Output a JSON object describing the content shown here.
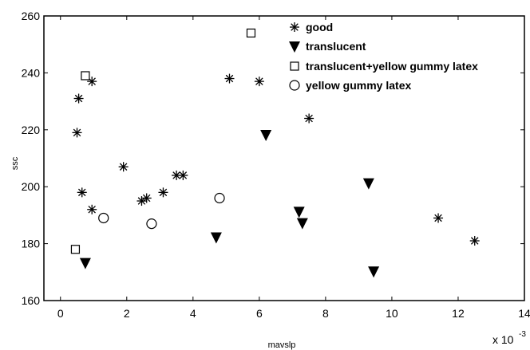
{
  "chart_data": {
    "type": "scatter",
    "title": "",
    "xlabel": "mavslp",
    "ylabel": "ssc",
    "x_multiplier": {
      "base": "x 10",
      "exponent": "-3"
    },
    "xlim": [
      -0.5,
      14
    ],
    "ylim": [
      160,
      260
    ],
    "xticks": [
      "0",
      "2",
      "4",
      "6",
      "8",
      "10",
      "12",
      "14"
    ],
    "yticks": [
      "160",
      "180",
      "200",
      "220",
      "240",
      "260"
    ],
    "grid": false,
    "legend_position": "top-right",
    "series": [
      {
        "name": "good",
        "marker": "asterisk",
        "points": [
          {
            "x": 0.5,
            "y": 219
          },
          {
            "x": 0.55,
            "y": 231
          },
          {
            "x": 0.65,
            "y": 198
          },
          {
            "x": 0.95,
            "y": 237
          },
          {
            "x": 0.95,
            "y": 192
          },
          {
            "x": 1.9,
            "y": 207
          },
          {
            "x": 2.45,
            "y": 195
          },
          {
            "x": 2.6,
            "y": 196
          },
          {
            "x": 3.1,
            "y": 198
          },
          {
            "x": 3.5,
            "y": 204
          },
          {
            "x": 3.7,
            "y": 204
          },
          {
            "x": 5.1,
            "y": 238
          },
          {
            "x": 6.0,
            "y": 237
          },
          {
            "x": 7.5,
            "y": 224
          },
          {
            "x": 11.4,
            "y": 189
          },
          {
            "x": 12.5,
            "y": 181
          }
        ]
      },
      {
        "name": "translucent",
        "marker": "triangle-down",
        "points": [
          {
            "x": 0.75,
            "y": 173
          },
          {
            "x": 4.7,
            "y": 182
          },
          {
            "x": 6.2,
            "y": 218
          },
          {
            "x": 7.2,
            "y": 191
          },
          {
            "x": 7.3,
            "y": 187
          },
          {
            "x": 9.3,
            "y": 201
          },
          {
            "x": 9.45,
            "y": 170
          }
        ]
      },
      {
        "name": "translucent+yellow gummy latex",
        "marker": "square",
        "points": [
          {
            "x": 0.45,
            "y": 178
          },
          {
            "x": 0.75,
            "y": 239
          },
          {
            "x": 5.75,
            "y": 254
          }
        ]
      },
      {
        "name": "yellow gummy latex",
        "marker": "circle",
        "points": [
          {
            "x": 1.3,
            "y": 189
          },
          {
            "x": 2.75,
            "y": 187
          },
          {
            "x": 4.8,
            "y": 196
          }
        ]
      }
    ]
  }
}
